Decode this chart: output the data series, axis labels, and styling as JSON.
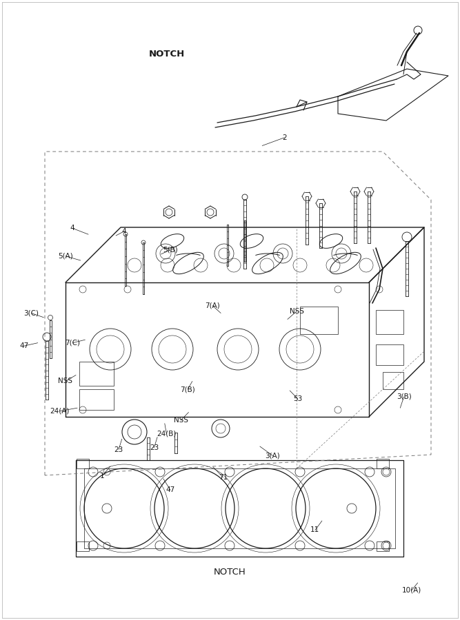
{
  "bg_color": "#ffffff",
  "lc": "#1a1a1a",
  "gray": "#888888",
  "figsize": [
    6.67,
    9.0
  ],
  "dpi": 100,
  "labels": {
    "10A": [
      0.895,
      0.952,
      "10(A)"
    ],
    "11": [
      0.685,
      0.855,
      "11"
    ],
    "47a": [
      0.37,
      0.79,
      "47"
    ],
    "71": [
      0.485,
      0.77,
      "71"
    ],
    "3A": [
      0.593,
      0.735,
      "3(A)"
    ],
    "3B": [
      0.878,
      0.64,
      "3(B)"
    ],
    "1": [
      0.222,
      0.768,
      "1"
    ],
    "23a": [
      0.258,
      0.725,
      "23"
    ],
    "23b": [
      0.335,
      0.722,
      "23"
    ],
    "24B": [
      0.362,
      0.7,
      "24(B)"
    ],
    "NSS1": [
      0.393,
      0.678,
      "NSS"
    ],
    "24A": [
      0.13,
      0.663,
      "24(A)"
    ],
    "NSS2": [
      0.142,
      0.615,
      "NSS"
    ],
    "7B": [
      0.408,
      0.628,
      "7(B)"
    ],
    "53": [
      0.647,
      0.643,
      "53"
    ],
    "47b": [
      0.052,
      0.558,
      "47"
    ],
    "7C": [
      0.158,
      0.553,
      "7(C)"
    ],
    "3C": [
      0.068,
      0.505,
      "3(C)"
    ],
    "NSS3": [
      0.645,
      0.502,
      "NSS"
    ],
    "7A": [
      0.462,
      0.493,
      "7(A)"
    ],
    "5A": [
      0.142,
      0.413,
      "5(A)"
    ],
    "5B": [
      0.37,
      0.403,
      "5(B)"
    ],
    "4a": [
      0.157,
      0.368,
      "4"
    ],
    "4b": [
      0.27,
      0.373,
      "4"
    ],
    "2": [
      0.618,
      0.222,
      "2"
    ],
    "NOTCH": [
      0.363,
      0.087,
      "NOTCH"
    ]
  }
}
